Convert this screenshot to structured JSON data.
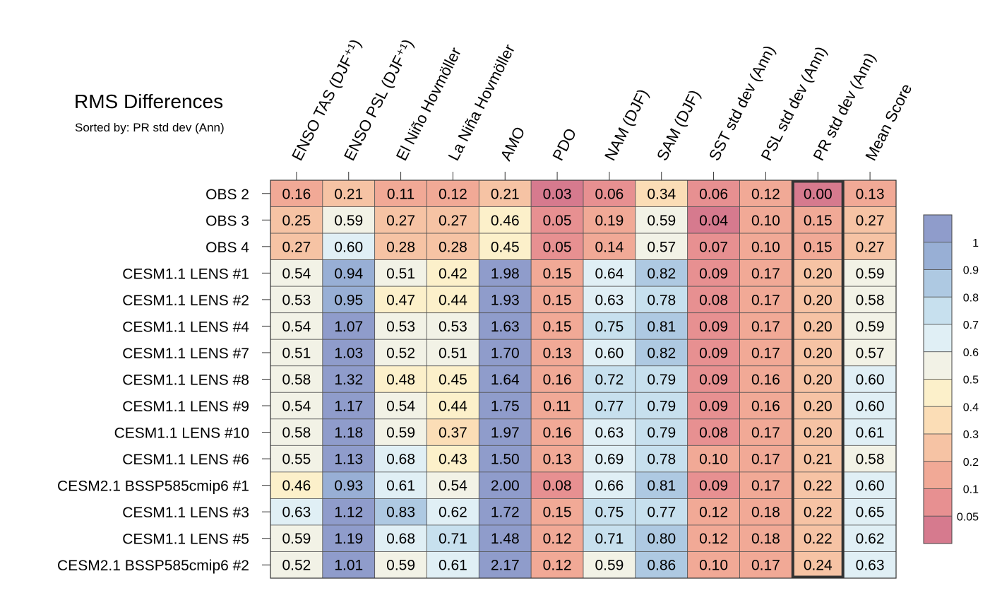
{
  "chart_data": {
    "type": "heatmap",
    "title": "RMS Differences",
    "subtitle": "Sorted by: PR std dev (Ann)",
    "columns": [
      "ENSO TAS (DJF⁺¹)",
      "ENSO PSL (DJF⁺¹)",
      "El Niño Hovmöller",
      "La Niña Hovmöller",
      "AMO",
      "PDO",
      "NAM (DJF)",
      "SAM (DJF)",
      "SST std dev (Ann)",
      "PSL std dev (Ann)",
      "PR std dev (Ann)",
      "Mean Score"
    ],
    "highlighted_column": "PR std dev (Ann)",
    "rows": [
      {
        "label": "OBS 2",
        "values": [
          0.16,
          0.21,
          0.11,
          0.12,
          0.21,
          0.03,
          0.06,
          0.34,
          0.06,
          0.12,
          0.0,
          0.13
        ]
      },
      {
        "label": "OBS 3",
        "values": [
          0.25,
          0.59,
          0.27,
          0.27,
          0.46,
          0.05,
          0.19,
          0.59,
          0.04,
          0.1,
          0.15,
          0.27
        ]
      },
      {
        "label": "OBS 4",
        "values": [
          0.27,
          0.6,
          0.28,
          0.28,
          0.45,
          0.05,
          0.14,
          0.57,
          0.07,
          0.1,
          0.15,
          0.27
        ]
      },
      {
        "label": "CESM1.1 LENS #1",
        "values": [
          0.54,
          0.94,
          0.51,
          0.42,
          1.98,
          0.15,
          0.64,
          0.82,
          0.09,
          0.17,
          0.2,
          0.59
        ]
      },
      {
        "label": "CESM1.1 LENS #2",
        "values": [
          0.53,
          0.95,
          0.47,
          0.44,
          1.93,
          0.15,
          0.63,
          0.78,
          0.08,
          0.17,
          0.2,
          0.58
        ]
      },
      {
        "label": "CESM1.1 LENS #4",
        "values": [
          0.54,
          1.07,
          0.53,
          0.53,
          1.63,
          0.15,
          0.75,
          0.81,
          0.09,
          0.17,
          0.2,
          0.59
        ]
      },
      {
        "label": "CESM1.1 LENS #7",
        "values": [
          0.51,
          1.03,
          0.52,
          0.51,
          1.7,
          0.13,
          0.6,
          0.82,
          0.09,
          0.17,
          0.2,
          0.57
        ]
      },
      {
        "label": "CESM1.1 LENS #8",
        "values": [
          0.58,
          1.32,
          0.48,
          0.45,
          1.64,
          0.16,
          0.72,
          0.79,
          0.09,
          0.16,
          0.2,
          0.6
        ]
      },
      {
        "label": "CESM1.1 LENS #9",
        "values": [
          0.54,
          1.17,
          0.54,
          0.44,
          1.75,
          0.11,
          0.77,
          0.79,
          0.09,
          0.16,
          0.2,
          0.6
        ]
      },
      {
        "label": "CESM1.1 LENS #10",
        "values": [
          0.58,
          1.18,
          0.59,
          0.37,
          1.97,
          0.16,
          0.63,
          0.79,
          0.08,
          0.17,
          0.2,
          0.61
        ]
      },
      {
        "label": "CESM1.1 LENS #6",
        "values": [
          0.55,
          1.13,
          0.68,
          0.43,
          1.5,
          0.13,
          0.69,
          0.78,
          0.1,
          0.17,
          0.21,
          0.58
        ]
      },
      {
        "label": "CESM2.1 BSSP585cmip6 #1",
        "values": [
          0.46,
          0.93,
          0.61,
          0.54,
          2.0,
          0.08,
          0.66,
          0.81,
          0.09,
          0.17,
          0.22,
          0.6
        ]
      },
      {
        "label": "CESM1.1 LENS #3",
        "values": [
          0.63,
          1.12,
          0.83,
          0.62,
          1.72,
          0.15,
          0.75,
          0.77,
          0.12,
          0.18,
          0.22,
          0.65
        ]
      },
      {
        "label": "CESM1.1 LENS #5",
        "values": [
          0.59,
          1.19,
          0.68,
          0.71,
          1.48,
          0.12,
          0.71,
          0.8,
          0.12,
          0.18,
          0.22,
          0.62
        ]
      },
      {
        "label": "CESM2.1 BSSP585cmip6 #2",
        "values": [
          0.52,
          1.01,
          0.59,
          0.61,
          2.17,
          0.12,
          0.59,
          0.86,
          0.1,
          0.17,
          0.24,
          0.63
        ]
      }
    ],
    "colorbar": {
      "levels": [
        0.05,
        0.1,
        0.2,
        0.3,
        0.4,
        0.5,
        0.6,
        0.7,
        0.8,
        0.9,
        1
      ],
      "labels": [
        "1",
        "0.9",
        "0.8",
        "0.7",
        "0.6",
        "0.5",
        "0.4",
        "0.3",
        "0.2",
        "0.1",
        "0.05"
      ],
      "colors": [
        "#D67A8E",
        "#E79091",
        "#F1A996",
        "#F6C3A4",
        "#FBDDB6",
        "#FCF0CA",
        "#F2F2E6",
        "#E0EFF5",
        "#C7E0EE",
        "#AEC9E2",
        "#98AFD5",
        "#8F9CCB"
      ]
    },
    "border_color": "#333333"
  }
}
